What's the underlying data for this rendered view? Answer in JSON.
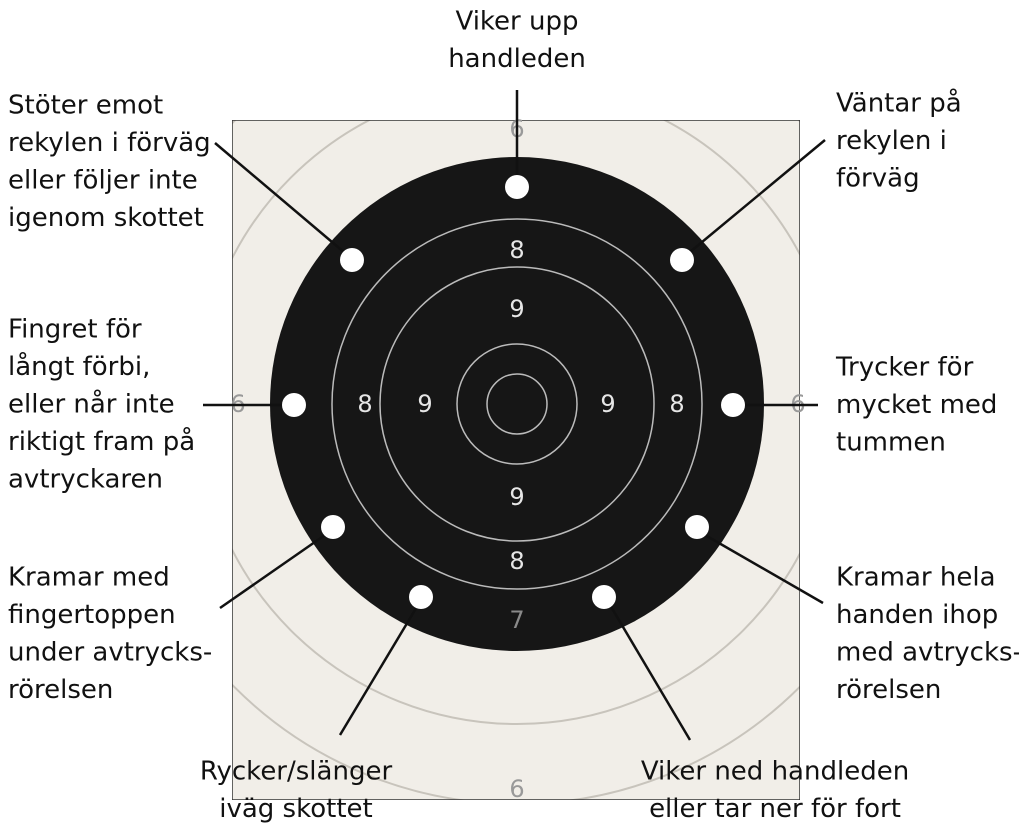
{
  "labels": [
    {
      "lines": [
        "Viker upp",
        "handleden"
      ]
    },
    {
      "lines": [
        "Stöter emot",
        "rekylen i förväg",
        "eller följer inte",
        "igenom skottet"
      ]
    },
    {
      "lines": [
        "Väntar på",
        "rekylen i",
        "förväg"
      ]
    },
    {
      "lines": [
        "Fingret för",
        "långt förbi,",
        "eller når inte",
        "riktigt fram på",
        "avtryckaren"
      ]
    },
    {
      "lines": [
        "Trycker för",
        "mycket med",
        "tummen"
      ]
    },
    {
      "lines": [
        "Kramar med",
        "fingertoppen",
        "under avtrycks-",
        "rörelsen"
      ]
    },
    {
      "lines": [
        "Kramar hela",
        "handen ihop",
        "med avtrycks-",
        "rörelsen"
      ]
    },
    {
      "lines": [
        "Rycker/slänger",
        "iväg skottet"
      ]
    },
    {
      "lines": [
        "Viker ned handleden",
        "eller tar ner för fort"
      ]
    }
  ],
  "target": {
    "ring_numbers": [
      "6",
      "8",
      "9",
      "6",
      "8",
      "9",
      "9",
      "8",
      "6",
      "9",
      "8",
      "7",
      "6"
    ]
  }
}
